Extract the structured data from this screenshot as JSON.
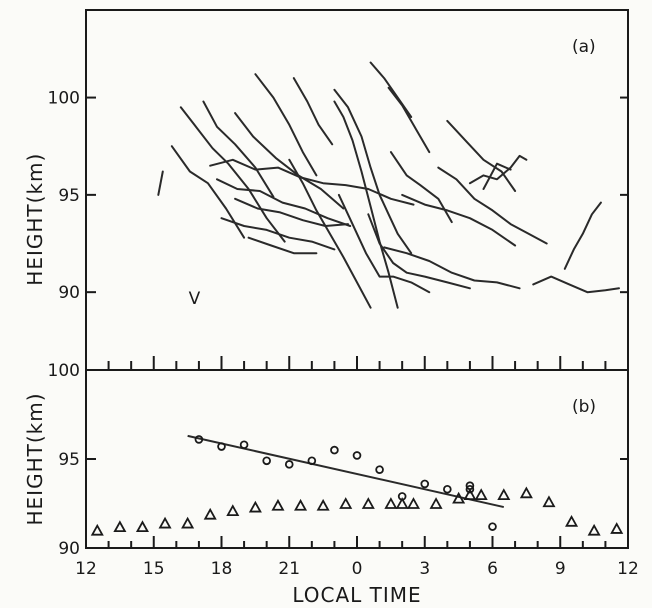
{
  "chart_data": [
    {
      "panel_label": "(a)",
      "type": "line",
      "ylabel": "HEIGHT(km)",
      "ylim": [
        86,
        104.5
      ],
      "yticks": [
        90,
        95,
        100
      ],
      "xlim": [
        12,
        36
      ],
      "series": [
        {
          "x": [
            16.2,
            16.8,
            17.6,
            18.3,
            19.2,
            20.0,
            20.8
          ],
          "y": [
            99.5,
            98.6,
            97.4,
            96.6,
            95.3,
            93.8,
            92.6
          ]
        },
        {
          "x": [
            15.8,
            16.6,
            17.4,
            18.2,
            19.0
          ],
          "y": [
            97.5,
            96.2,
            95.6,
            94.3,
            92.8
          ]
        },
        {
          "x": [
            17.2,
            17.8,
            18.6,
            19.5,
            20.3
          ],
          "y": [
            99.8,
            98.5,
            97.6,
            96.4,
            94.9
          ]
        },
        {
          "x": [
            18.6,
            19.4,
            20.4,
            21.4,
            22.4,
            23.4
          ],
          "y": [
            99.2,
            98.0,
            96.9,
            96.0,
            95.3,
            94.3
          ]
        },
        {
          "x": [
            19.5,
            20.3,
            21.0,
            21.6,
            22.2
          ],
          "y": [
            101.2,
            100.0,
            98.6,
            97.2,
            96.0
          ]
        },
        {
          "x": [
            21.2,
            21.8,
            22.3,
            22.9
          ],
          "y": [
            101.0,
            99.8,
            98.6,
            97.6
          ]
        },
        {
          "x": [
            17.5,
            18.5,
            19.5,
            20.5,
            21.5,
            22.5,
            23.5,
            24.5,
            25.5,
            26.5
          ],
          "y": [
            96.5,
            96.8,
            96.3,
            96.4,
            95.9,
            95.6,
            95.5,
            95.3,
            94.8,
            94.5
          ]
        },
        {
          "x": [
            17.8,
            18.7,
            19.7,
            20.7,
            21.7,
            22.7,
            23.7
          ],
          "y": [
            95.8,
            95.3,
            95.2,
            94.6,
            94.3,
            93.8,
            93.4
          ]
        },
        {
          "x": [
            18.0,
            19.0,
            20.0,
            21.0,
            22.0,
            23.0
          ],
          "y": [
            93.8,
            93.4,
            93.2,
            92.8,
            92.6,
            92.2
          ]
        },
        {
          "x": [
            19.2,
            20.2,
            21.2,
            22.2
          ],
          "y": [
            92.8,
            92.4,
            92.0,
            92.0
          ]
        },
        {
          "x": [
            18.6,
            19.6,
            20.6,
            21.6,
            22.6,
            23.6
          ],
          "y": [
            94.8,
            94.3,
            94.1,
            93.7,
            93.4,
            93.5
          ]
        },
        {
          "x": [
            21.0,
            21.6,
            22.2,
            22.8,
            23.4,
            24.0,
            24.6
          ],
          "y": [
            96.8,
            95.6,
            94.2,
            93.0,
            91.8,
            90.5,
            89.2
          ]
        },
        {
          "x": [
            23.2,
            23.8,
            24.4,
            25.0,
            25.6,
            26.4,
            27.2
          ],
          "y": [
            95.0,
            93.5,
            92.0,
            90.8,
            90.8,
            90.5,
            90.0
          ]
        },
        {
          "x": [
            24.5,
            25.0,
            25.6,
            26.2,
            27.0,
            28.0,
            29.0
          ],
          "y": [
            94.0,
            92.5,
            91.5,
            91.0,
            90.8,
            90.5,
            90.2
          ]
        },
        {
          "x": [
            25.2,
            26.2,
            27.2,
            28.2,
            29.2,
            30.2,
            31.2
          ],
          "y": [
            92.3,
            92.0,
            91.6,
            91.0,
            90.6,
            90.5,
            90.2
          ]
        },
        {
          "x": [
            23.0,
            23.4,
            23.8,
            24.2,
            24.6,
            25.0,
            25.4,
            25.8
          ],
          "y": [
            99.8,
            99.0,
            97.8,
            96.2,
            94.4,
            92.6,
            91.0,
            89.2
          ]
        },
        {
          "x": [
            23.0,
            23.6,
            24.2,
            24.6,
            25.0,
            25.4,
            25.8,
            26.4
          ],
          "y": [
            100.4,
            99.5,
            98.0,
            96.4,
            95.0,
            94.0,
            93.0,
            92.0
          ]
        },
        {
          "x": [
            24.6,
            25.2,
            25.8,
            26.4
          ],
          "y": [
            101.8,
            101.0,
            100.0,
            99.0
          ]
        },
        {
          "x": [
            25.4,
            26.0,
            26.6,
            27.2
          ],
          "y": [
            100.5,
            99.6,
            98.4,
            97.2
          ]
        },
        {
          "x": [
            25.5,
            26.2,
            26.8,
            27.6,
            28.2
          ],
          "y": [
            97.2,
            96.0,
            95.5,
            94.8,
            93.6
          ]
        },
        {
          "x": [
            26.0,
            27.0,
            28.0,
            29.0,
            30.0,
            31.0
          ],
          "y": [
            95.0,
            94.5,
            94.2,
            93.8,
            93.2,
            92.4
          ]
        },
        {
          "x": [
            28.0,
            28.8,
            29.6,
            30.4,
            31.0
          ],
          "y": [
            98.8,
            97.8,
            96.8,
            96.2,
            95.2
          ]
        },
        {
          "x": [
            27.6,
            28.4,
            29.2,
            30.0,
            30.8,
            31.6,
            32.4
          ],
          "y": [
            96.4,
            95.8,
            94.8,
            94.2,
            93.5,
            93.0,
            92.5
          ]
        },
        {
          "x": [
            29.0,
            29.6,
            30.2,
            30.8,
            31.2,
            31.5
          ],
          "y": [
            95.6,
            96.0,
            95.8,
            96.4,
            97.0,
            96.8
          ]
        },
        {
          "x": [
            29.6,
            30.2,
            30.8
          ],
          "y": [
            95.3,
            96.6,
            96.3
          ]
        },
        {
          "x": [
            31.8,
            32.6,
            33.4,
            34.2,
            35.0,
            35.6
          ],
          "y": [
            90.4,
            90.8,
            90.4,
            90.0,
            90.1,
            90.2
          ]
        },
        {
          "x": [
            33.2,
            33.6,
            34.0,
            34.4,
            34.8
          ],
          "y": [
            91.2,
            92.2,
            93.0,
            94.0,
            94.6
          ]
        },
        {
          "x": [
            15.4,
            15.2
          ],
          "y": [
            96.2,
            95.0
          ]
        }
      ],
      "annotations": [
        "V"
      ]
    },
    {
      "panel_label": "(b)",
      "type": "scatter",
      "xlabel": "LOCAL TIME",
      "ylabel": "HEIGHT(km)",
      "ylim": [
        90,
        100
      ],
      "yticks": [
        90,
        95,
        100
      ],
      "xlim": [
        12,
        36
      ],
      "xtick_values": [
        12,
        15,
        18,
        21,
        24,
        27,
        30,
        33,
        36
      ],
      "xtick_labels": [
        "12",
        "15",
        "18",
        "21",
        "0",
        "3",
        "6",
        "9",
        "12"
      ],
      "series": [
        {
          "marker": "circle",
          "x": [
            17,
            18,
            19,
            20,
            21,
            22,
            23,
            24,
            25,
            27,
            28,
            29,
            30
          ],
          "y": [
            96.1,
            95.7,
            95.8,
            94.9,
            94.7,
            94.9,
            95.5,
            95.2,
            94.4,
            93.6,
            93.3,
            93.5,
            91.2
          ]
        },
        {
          "marker": "circle",
          "x": [
            26,
            29
          ],
          "y": [
            92.9,
            93.3
          ]
        },
        {
          "marker": "triangle",
          "x": [
            12.5,
            13.5,
            14.5,
            15.5,
            16.5,
            17.5,
            18.5,
            19.5,
            20.5,
            21.5,
            22.5,
            23.5,
            24.5,
            25.5,
            26.5,
            27.5,
            28.5,
            29.5,
            30.5,
            31.5,
            32.5,
            33.5,
            34.5,
            35.5
          ],
          "y": [
            91.0,
            91.2,
            91.2,
            91.4,
            91.4,
            91.9,
            92.1,
            92.3,
            92.4,
            92.4,
            92.4,
            92.5,
            92.5,
            92.5,
            92.5,
            92.5,
            92.8,
            93.0,
            93.0,
            93.1,
            92.6,
            91.5,
            91.0,
            91.1
          ]
        },
        {
          "marker": "triangle",
          "x": [
            26.0,
            29.0
          ],
          "y": [
            92.5,
            93.0
          ]
        }
      ],
      "fit_line": {
        "x": [
          16.5,
          30.5
        ],
        "y": [
          96.3,
          92.3
        ]
      }
    }
  ]
}
